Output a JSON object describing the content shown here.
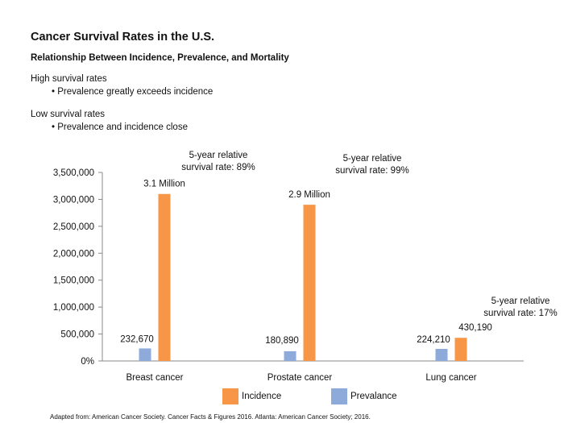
{
  "header": {
    "title": "Cancer Survival Rates in the U.S.",
    "subtitle": "Relationship Between Incidence, Prevalence, and Mortality"
  },
  "notes": [
    {
      "head": "High survival rates",
      "bullet": "Prevalence greatly exceeds incidence"
    },
    {
      "head": "Low survival rates",
      "bullet": "Prevalence and incidence close"
    }
  ],
  "legend": {
    "incidence": "Incidence",
    "prevalence": "Prevalance"
  },
  "footnote": "Adapted from: American Cancer Society. Cancer Facts & Figures 2016. Atlanta: American Cancer Society; 2016.",
  "colors": {
    "incidence": "#f79646",
    "prevalence": "#8eaadb",
    "axis": "#888888"
  },
  "chart_data": {
    "type": "bar",
    "categories": [
      "Breast cancer",
      "Prostate cancer",
      "Lung cancer"
    ],
    "series": [
      {
        "name": "Prevalance",
        "values": [
          232670,
          180890,
          224210
        ],
        "labels": [
          "232,670",
          "180,890",
          "224,210"
        ]
      },
      {
        "name": "Incidence",
        "values": [
          3100000,
          2900000,
          430190
        ],
        "labels": [
          "3.1 Million",
          "2.9 Million",
          "430,190"
        ]
      }
    ],
    "yticks": [
      "0%",
      "500,000",
      "1,000,000",
      "1,500,000",
      "2,000,000",
      "2,500,000",
      "3,000,000",
      "3,500,000"
    ],
    "ylim": [
      0,
      3500000
    ],
    "annotations": [
      [
        "5-year relative",
        "survival rate: 89%"
      ],
      [
        "5-year relative",
        "survival rate: 99%"
      ],
      [
        "5-year relative",
        "survival rate: 17%"
      ]
    ],
    "grid": false,
    "legend_position": "bottom"
  }
}
